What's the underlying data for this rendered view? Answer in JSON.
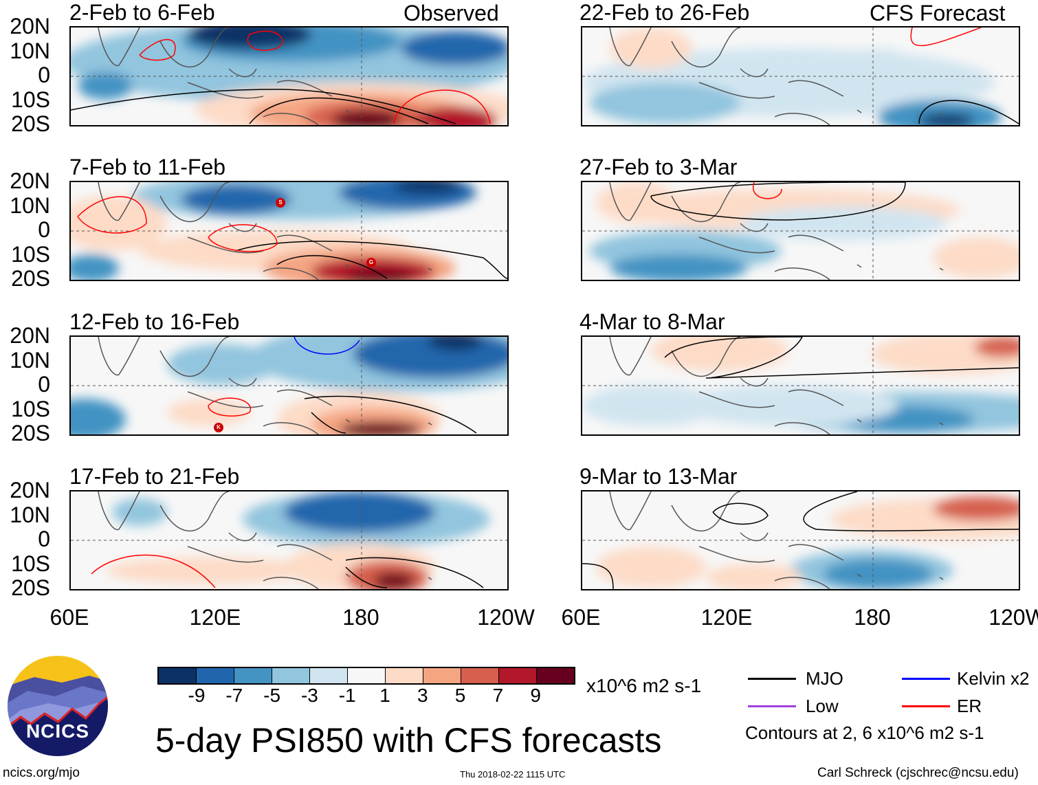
{
  "header": {
    "observed_label": "Observed",
    "forecast_label": "CFS Forecast"
  },
  "panels_observed": [
    {
      "title": "2-Feb to 6-Feb"
    },
    {
      "title": "7-Feb to 11-Feb"
    },
    {
      "title": "12-Feb to 16-Feb"
    },
    {
      "title": "17-Feb to 21-Feb"
    }
  ],
  "panels_forecast": [
    {
      "title": "22-Feb to 26-Feb"
    },
    {
      "title": "27-Feb to 3-Mar"
    },
    {
      "title": "4-Mar to 8-Mar"
    },
    {
      "title": "9-Mar to 13-Mar"
    }
  ],
  "lat_labels": [
    "20N",
    "10N",
    "0",
    "10S",
    "20S"
  ],
  "lon_labels": [
    "60E",
    "120E",
    "180",
    "120W"
  ],
  "colorbar": {
    "colors": [
      "#0b3266",
      "#2166ac",
      "#4393c3",
      "#92c5de",
      "#d1e5f0",
      "#f7f7f7",
      "#fddbc7",
      "#f4a582",
      "#d6604d",
      "#b2182b",
      "#67001f"
    ],
    "ticks": [
      "-9",
      "-7",
      "-5",
      "-3",
      "-1",
      "1",
      "3",
      "5",
      "7",
      "9"
    ],
    "units": "x10^6 m2 s-1"
  },
  "legend": {
    "items": [
      {
        "label": "MJO",
        "color": "#000000"
      },
      {
        "label": "Kelvin x2",
        "color": "#0000ff"
      },
      {
        "label": "Low",
        "color": "#a040e0"
      },
      {
        "label": "ER",
        "color": "#ff0000"
      }
    ],
    "contours_note": "Contours at 2, 6 x10^6 m2 s-1"
  },
  "title": "5-day PSI850 with CFS forecasts",
  "logo_text": "NCICS",
  "footer": {
    "url": "ncics.org/mjo",
    "timestamp": "Thu 2018-02-22 1115 UTC",
    "author": "Carl Schreck (cjschrec@ncsu.edu)"
  },
  "storm_markers": [
    "S",
    "G",
    "K"
  ]
}
